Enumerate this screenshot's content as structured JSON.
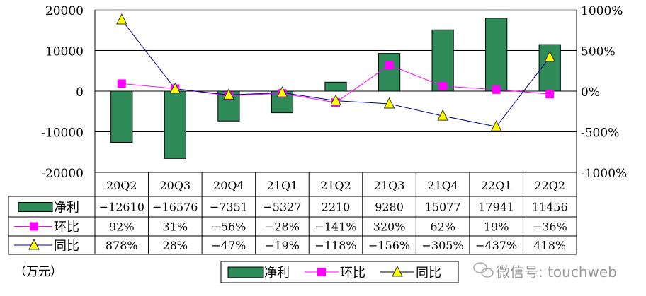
{
  "chart_data": {
    "type": "bar+line",
    "categories": [
      "20Q2",
      "20Q3",
      "20Q4",
      "21Q1",
      "21Q2",
      "21Q3",
      "21Q4",
      "22Q1",
      "22Q2"
    ],
    "series": [
      {
        "name": "净利",
        "type": "bar",
        "axis": "left",
        "color": "#2e8b57",
        "values": [
          -12610,
          -16576,
          -7351,
          -5327,
          2210,
          9280,
          15077,
          17941,
          11456
        ],
        "labels": [
          "-12610",
          "-16576",
          "-7351",
          "-5327",
          "2210",
          "9280",
          "15077",
          "17941",
          "11456"
        ]
      },
      {
        "name": "环比",
        "type": "line",
        "axis": "right",
        "marker": "square",
        "color": "#ff00ff",
        "values": [
          92,
          31,
          -56,
          -28,
          -141,
          320,
          62,
          19,
          -36
        ],
        "labels": [
          "92%",
          "31%",
          "-56%",
          "-28%",
          "-141%",
          "320%",
          "62%",
          "19%",
          "-36%"
        ]
      },
      {
        "name": "同比",
        "type": "line",
        "axis": "right",
        "marker": "triangle",
        "color": "#000080",
        "marker_color": "#ffff00",
        "values": [
          878,
          28,
          -47,
          -19,
          -118,
          -156,
          -305,
          -437,
          418
        ],
        "labels": [
          "878%",
          "28%",
          "-47%",
          "-19%",
          "-118%",
          "-156%",
          "-305%",
          "-437%",
          "418%"
        ]
      }
    ],
    "y_left": {
      "ylim": [
        -20000,
        20000
      ],
      "ticks": [
        "20000",
        "10000",
        "0",
        "-10000",
        "-20000"
      ]
    },
    "y_right": {
      "ylim": [
        -1000,
        1000
      ],
      "ticks": [
        "1000%",
        "500%",
        "0%",
        "-500%",
        "-1000%"
      ]
    },
    "unit_label": "（万元）",
    "grid": true,
    "legend": "bottom",
    "data_table": true
  },
  "watermark": "微信号: touchweb"
}
